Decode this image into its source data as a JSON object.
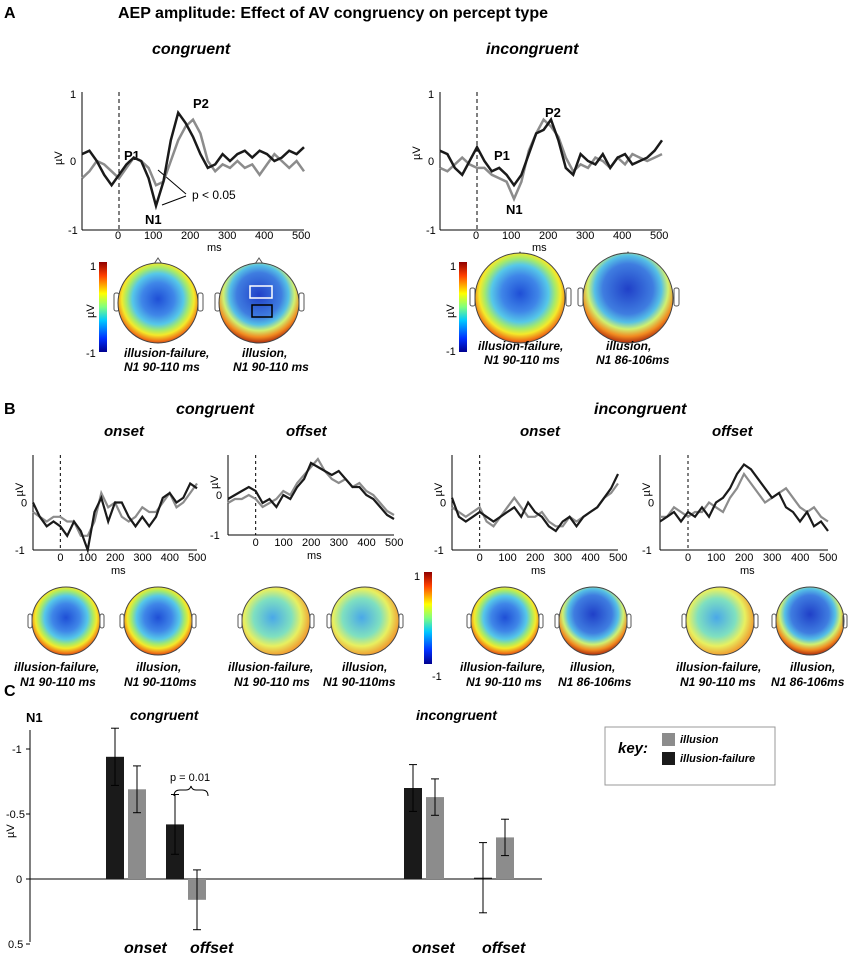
{
  "title": "AEP amplitude: Effect of AV congruency on percept type",
  "panel_labels": {
    "a": "A",
    "b": "B",
    "c": "C"
  },
  "colors": {
    "illusion": "#8c8c8c",
    "illusion_failure": "#1a1a1a"
  },
  "panel_a": {
    "congruent": {
      "heading": "congruent",
      "yunit": "µV",
      "xunit": "ms",
      "yticks": [
        "1",
        "0",
        "-1"
      ],
      "xticks": [
        "0",
        "100",
        "200",
        "300",
        "400",
        "500"
      ],
      "peaks": {
        "p1": "P1",
        "n1": "N1",
        "p2": "P2"
      },
      "sig_label": "p < 0.05",
      "topo_labels": [
        {
          "line1": "illusion-failure,",
          "line2": "N1 90-110 ms"
        },
        {
          "line1": "illusion,",
          "line2": "N1 90-110 ms"
        }
      ],
      "colorbar": {
        "max": "1",
        "min": "-1",
        "unit": "µV"
      }
    },
    "incongruent": {
      "heading": "incongruent",
      "yunit": "µV",
      "xunit": "ms",
      "yticks": [
        "1",
        "0",
        "-1"
      ],
      "xticks": [
        "0",
        "100",
        "200",
        "300",
        "400",
        "500"
      ],
      "peaks": {
        "p1": "P1",
        "n1": "N1",
        "p2": "P2"
      },
      "topo_labels": [
        {
          "line1": "illusion-failure,",
          "line2": "N1 90-110 ms"
        },
        {
          "line1": "illusion,",
          "line2": "N1 86-106ms"
        }
      ],
      "colorbar": {
        "max": "1",
        "min": "-1",
        "unit": "µV"
      }
    }
  },
  "panel_b": {
    "group_headings": {
      "congruent": "congruent",
      "incongruent": "incongruent"
    },
    "subheadings": {
      "onset": "onset",
      "offset": "offset"
    },
    "yunit": "µV",
    "xunit": "ms",
    "yticks": [
      "0",
      "-1"
    ],
    "xticks": [
      "0",
      "100",
      "200",
      "300",
      "400",
      "500"
    ],
    "topo_labels": {
      "cong_onset": [
        {
          "line1": "illusion-failure,",
          "line2": "N1 90-110 ms"
        },
        {
          "line1": "illusion,",
          "line2": "N1 90-110ms"
        }
      ],
      "cong_offset": [
        {
          "line1": "illusion-failure,",
          "line2": "N1 90-110 ms"
        },
        {
          "line1": "illusion,",
          "line2": "N1 90-110ms"
        }
      ],
      "incong_onset": [
        {
          "line1": "illusion-failure,",
          "line2": "N1 90-110 ms"
        },
        {
          "line1": "illusion,",
          "line2": "N1 86-106ms"
        }
      ],
      "incong_offset": [
        {
          "line1": "illusion-failure,",
          "line2": "N1 90-110 ms"
        },
        {
          "line1": "illusion,",
          "line2": "N1 86-106ms"
        }
      ]
    },
    "colorbar": {
      "max": "1",
      "min": "-1"
    }
  },
  "panel_c": {
    "ylabel_top": "N1",
    "yunit": "µV",
    "group_headings": {
      "congruent": "congruent",
      "incongruent": "incongruent"
    },
    "xgroup_labels": {
      "onset": "onset",
      "offset": "offset"
    },
    "pvalue": "p = 0.01",
    "key": {
      "title": "key:",
      "illusion": "illusion",
      "illusion_failure": "illusion-failure"
    },
    "yticks": [
      "-1",
      "-0.5",
      "0",
      "0.5"
    ]
  },
  "chart_data": [
    {
      "type": "line",
      "title": "congruent",
      "xlabel": "ms",
      "ylabel": "µV",
      "xlim": [
        -100,
        500
      ],
      "ylim": [
        -1,
        1
      ],
      "series": [
        {
          "name": "illusion-failure",
          "x": [
            -100,
            -80,
            -60,
            -40,
            -20,
            0,
            20,
            40,
            60,
            80,
            100,
            120,
            140,
            160,
            180,
            200,
            220,
            240,
            260,
            280,
            300,
            320,
            340,
            360,
            380,
            400,
            420,
            440,
            460,
            480,
            500
          ],
          "y": [
            0.1,
            0.15,
            0.0,
            -0.2,
            -0.35,
            -0.2,
            -0.05,
            0.05,
            0.0,
            -0.25,
            -0.65,
            -0.3,
            0.3,
            0.7,
            0.55,
            0.35,
            0.1,
            -0.1,
            -0.05,
            0.1,
            0.0,
            0.1,
            0.15,
            0.05,
            0.15,
            0.1,
            0.0,
            0.05,
            0.15,
            0.1,
            0.2
          ]
        },
        {
          "name": "illusion",
          "x": [
            -100,
            -80,
            -60,
            -40,
            -20,
            0,
            20,
            40,
            60,
            80,
            100,
            120,
            140,
            160,
            180,
            200,
            220,
            240,
            260,
            280,
            300,
            320,
            340,
            360,
            380,
            400,
            420,
            440,
            460,
            480,
            500
          ],
          "y": [
            -0.25,
            -0.15,
            0.0,
            -0.05,
            -0.15,
            -0.25,
            -0.1,
            0.05,
            0.0,
            -0.1,
            -0.35,
            -0.3,
            0.0,
            0.3,
            0.5,
            0.6,
            0.4,
            0.0,
            -0.15,
            -0.05,
            -0.1,
            0.0,
            -0.1,
            -0.05,
            -0.2,
            -0.05,
            0.1,
            0.0,
            -0.1,
            0.0,
            -0.15
          ]
        }
      ]
    },
    {
      "type": "line",
      "title": "incongruent",
      "xlabel": "ms",
      "ylabel": "µV",
      "xlim": [
        -100,
        500
      ],
      "ylim": [
        -1,
        1
      ],
      "series": [
        {
          "name": "illusion-failure",
          "x": [
            -100,
            -80,
            -60,
            -40,
            -20,
            0,
            20,
            40,
            60,
            80,
            100,
            120,
            140,
            160,
            180,
            200,
            220,
            240,
            260,
            280,
            300,
            320,
            340,
            360,
            380,
            400,
            420,
            440,
            460,
            480,
            500
          ],
          "y": [
            0.15,
            0.1,
            -0.1,
            -0.2,
            0.0,
            0.2,
            0.0,
            -0.15,
            -0.1,
            -0.2,
            -0.35,
            -0.2,
            0.1,
            0.4,
            0.45,
            0.6,
            0.3,
            -0.1,
            -0.2,
            0.1,
            0.0,
            -0.05,
            0.1,
            -0.1,
            0.05,
            0.1,
            -0.05,
            0.0,
            0.05,
            0.15,
            0.3
          ]
        },
        {
          "name": "illusion",
          "x": [
            -100,
            -80,
            -60,
            -40,
            -20,
            0,
            20,
            40,
            60,
            80,
            100,
            120,
            140,
            160,
            180,
            200,
            220,
            240,
            260,
            280,
            300,
            320,
            340,
            360,
            380,
            400,
            420,
            440,
            460,
            480,
            500
          ],
          "y": [
            -0.1,
            -0.15,
            -0.05,
            0.05,
            -0.05,
            -0.1,
            -0.1,
            -0.2,
            -0.25,
            -0.3,
            -0.55,
            -0.3,
            0.15,
            0.4,
            0.6,
            0.5,
            0.35,
            0.05,
            -0.15,
            -0.05,
            -0.1,
            0.05,
            0.0,
            -0.1,
            0.05,
            -0.05,
            0.1,
            0.05,
            0.0,
            0.05,
            0.1
          ]
        }
      ]
    },
    {
      "type": "line",
      "title": "congruent onset",
      "xlabel": "ms",
      "ylabel": "µV",
      "xlim": [
        -100,
        500
      ],
      "ylim": [
        -1,
        1
      ],
      "series": [
        {
          "name": "illusion-failure",
          "x": [
            -100,
            -75,
            -50,
            -25,
            0,
            25,
            50,
            75,
            100,
            125,
            150,
            175,
            200,
            225,
            250,
            275,
            300,
            325,
            350,
            375,
            400,
            425,
            450,
            475,
            500
          ],
          "y": [
            0.0,
            -0.3,
            -0.5,
            -0.4,
            -0.5,
            -0.7,
            -0.4,
            -0.6,
            -1.0,
            -0.2,
            0.1,
            -0.4,
            0.0,
            0.0,
            -0.3,
            -0.5,
            -0.3,
            -0.5,
            -0.3,
            0.1,
            0.2,
            0.0,
            0.1,
            0.4,
            0.3
          ]
        },
        {
          "name": "illusion",
          "x": [
            -100,
            -75,
            -50,
            -25,
            0,
            25,
            50,
            75,
            100,
            125,
            150,
            175,
            200,
            225,
            250,
            275,
            300,
            325,
            350,
            375,
            400,
            425,
            450,
            475,
            500
          ],
          "y": [
            -0.2,
            -0.3,
            -0.4,
            -0.3,
            -0.3,
            -0.4,
            -0.4,
            -0.7,
            -0.7,
            -0.4,
            0.2,
            -0.1,
            0.0,
            -0.3,
            -0.4,
            -0.3,
            -0.1,
            -0.2,
            -0.2,
            0.0,
            0.2,
            -0.1,
            0.0,
            0.2,
            0.4
          ]
        }
      ]
    },
    {
      "type": "line",
      "title": "congruent offset",
      "xlabel": "ms",
      "ylabel": "µV",
      "xlim": [
        -100,
        500
      ],
      "ylim": [
        -1,
        1
      ],
      "series": [
        {
          "name": "illusion-failure",
          "x": [
            -100,
            -75,
            -50,
            -25,
            0,
            25,
            50,
            75,
            100,
            125,
            150,
            175,
            200,
            225,
            250,
            275,
            300,
            325,
            350,
            375,
            400,
            425,
            450,
            475,
            500
          ],
          "y": [
            -0.1,
            0.0,
            0.1,
            0.2,
            0.1,
            -0.2,
            -0.1,
            -0.3,
            0.0,
            -0.1,
            0.2,
            0.4,
            0.8,
            0.7,
            0.6,
            0.5,
            0.6,
            0.4,
            0.2,
            0.2,
            0.0,
            -0.1,
            -0.3,
            -0.5,
            -0.6
          ]
        },
        {
          "name": "illusion",
          "x": [
            -100,
            -75,
            -50,
            -25,
            0,
            25,
            50,
            75,
            100,
            125,
            150,
            175,
            200,
            225,
            250,
            275,
            300,
            325,
            350,
            375,
            400,
            425,
            450,
            475,
            500
          ],
          "y": [
            -0.2,
            -0.1,
            -0.1,
            0.0,
            -0.1,
            -0.3,
            -0.2,
            -0.1,
            0.1,
            0.0,
            0.3,
            0.5,
            0.7,
            0.9,
            0.6,
            0.4,
            0.3,
            0.4,
            0.2,
            0.3,
            0.1,
            0.0,
            -0.2,
            -0.4,
            -0.5
          ]
        }
      ]
    },
    {
      "type": "line",
      "title": "incongruent onset",
      "xlabel": "ms",
      "ylabel": "µV",
      "xlim": [
        -100,
        500
      ],
      "ylim": [
        -1,
        1
      ],
      "series": [
        {
          "name": "illusion-failure",
          "x": [
            -100,
            -75,
            -50,
            -25,
            0,
            25,
            50,
            75,
            100,
            125,
            150,
            175,
            200,
            225,
            250,
            275,
            300,
            325,
            350,
            375,
            400,
            425,
            450,
            475,
            500
          ],
          "y": [
            0.1,
            -0.3,
            -0.4,
            -0.3,
            -0.2,
            -0.3,
            -0.4,
            -0.3,
            -0.2,
            -0.1,
            -0.3,
            0.0,
            -0.2,
            -0.3,
            -0.5,
            -0.6,
            -0.4,
            -0.3,
            -0.5,
            -0.3,
            -0.2,
            -0.1,
            0.1,
            0.3,
            0.6
          ]
        },
        {
          "name": "illusion",
          "x": [
            -100,
            -75,
            -50,
            -25,
            0,
            25,
            50,
            75,
            100,
            125,
            150,
            175,
            200,
            225,
            250,
            275,
            300,
            325,
            350,
            375,
            400,
            425,
            450,
            475,
            500
          ],
          "y": [
            -0.1,
            -0.2,
            -0.3,
            -0.2,
            -0.1,
            -0.4,
            -0.5,
            -0.3,
            -0.1,
            0.1,
            -0.1,
            -0.3,
            -0.3,
            -0.2,
            -0.4,
            -0.5,
            -0.5,
            -0.3,
            -0.4,
            -0.3,
            -0.2,
            -0.1,
            0.1,
            0.2,
            0.4
          ]
        }
      ]
    },
    {
      "type": "line",
      "title": "incongruent offset",
      "xlabel": "ms",
      "ylabel": "µV",
      "xlim": [
        -100,
        500
      ],
      "ylim": [
        -1,
        1
      ],
      "series": [
        {
          "name": "illusion-failure",
          "x": [
            -100,
            -75,
            -50,
            -25,
            0,
            25,
            50,
            75,
            100,
            125,
            150,
            175,
            200,
            225,
            250,
            275,
            300,
            325,
            350,
            375,
            400,
            425,
            450,
            475,
            500
          ],
          "y": [
            -0.4,
            -0.3,
            -0.2,
            -0.4,
            -0.2,
            -0.3,
            -0.1,
            -0.3,
            0.0,
            0.1,
            0.3,
            0.6,
            0.8,
            0.7,
            0.5,
            0.3,
            0.1,
            0.2,
            -0.1,
            -0.2,
            -0.4,
            -0.2,
            -0.5,
            -0.4,
            -0.6
          ]
        },
        {
          "name": "illusion",
          "x": [
            -100,
            -75,
            -50,
            -25,
            0,
            25,
            50,
            75,
            100,
            125,
            150,
            175,
            200,
            225,
            250,
            275,
            300,
            325,
            350,
            375,
            400,
            425,
            450,
            475,
            500
          ],
          "y": [
            -0.3,
            -0.3,
            -0.1,
            -0.2,
            -0.3,
            -0.2,
            -0.2,
            0.0,
            -0.1,
            -0.2,
            0.1,
            0.3,
            0.6,
            0.4,
            0.2,
            0.0,
            0.1,
            0.2,
            0.3,
            0.1,
            -0.1,
            -0.2,
            -0.1,
            -0.3,
            -0.4
          ]
        }
      ]
    },
    {
      "type": "bar",
      "title": "N1",
      "ylabel": "µV",
      "ylim": [
        0.5,
        -1.2
      ],
      "categories": [
        "congruent onset",
        "congruent offset",
        "incongruent onset",
        "incongruent offset"
      ],
      "series": [
        {
          "name": "illusion-failure",
          "values": [
            -0.94,
            -0.42,
            -0.7,
            -0.01
          ],
          "errors": [
            0.22,
            0.23,
            0.18,
            0.27
          ]
        },
        {
          "name": "illusion",
          "values": [
            -0.69,
            0.16,
            -0.63,
            -0.32
          ],
          "errors": [
            0.18,
            0.23,
            0.14,
            0.14
          ]
        }
      ]
    }
  ]
}
